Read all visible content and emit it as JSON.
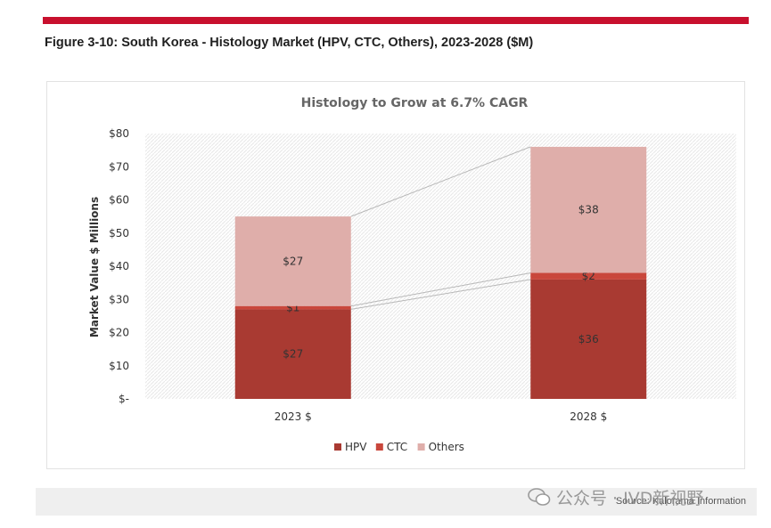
{
  "figure_title": "Figure 3-10: South Korea - Histology Market (HPV, CTC, Others), 2023-2028 ($M)",
  "source": "Source: Kalorama Information",
  "watermark": "公众号 · IVD新视野",
  "chart_data": {
    "type": "bar",
    "stacked": true,
    "title": "Histology to Grow at 6.7% CAGR",
    "ylabel": "Market Value $ Millions",
    "xlabel": "",
    "categories": [
      "2023 $",
      "2028 $"
    ],
    "ylim": [
      0,
      80
    ],
    "yticks": [
      0,
      10,
      20,
      30,
      40,
      50,
      60,
      70,
      80
    ],
    "ytick_labels": [
      "$-",
      "$10",
      "$20",
      "$30",
      "$40",
      "$50",
      "$60",
      "$70",
      "$80"
    ],
    "grid": false,
    "legend_position": "bottom",
    "series_lines": true,
    "series": [
      {
        "name": "HPV",
        "values": [
          27,
          36
        ],
        "labels": [
          "$27",
          "$36"
        ],
        "color": "#a93a32"
      },
      {
        "name": "CTC",
        "values": [
          1,
          2
        ],
        "labels": [
          "$1",
          "$2"
        ],
        "color": "#c9473c"
      },
      {
        "name": "Others",
        "values": [
          27,
          38
        ],
        "labels": [
          "$27",
          "$38"
        ],
        "color": "#dfaeaa"
      }
    ]
  }
}
